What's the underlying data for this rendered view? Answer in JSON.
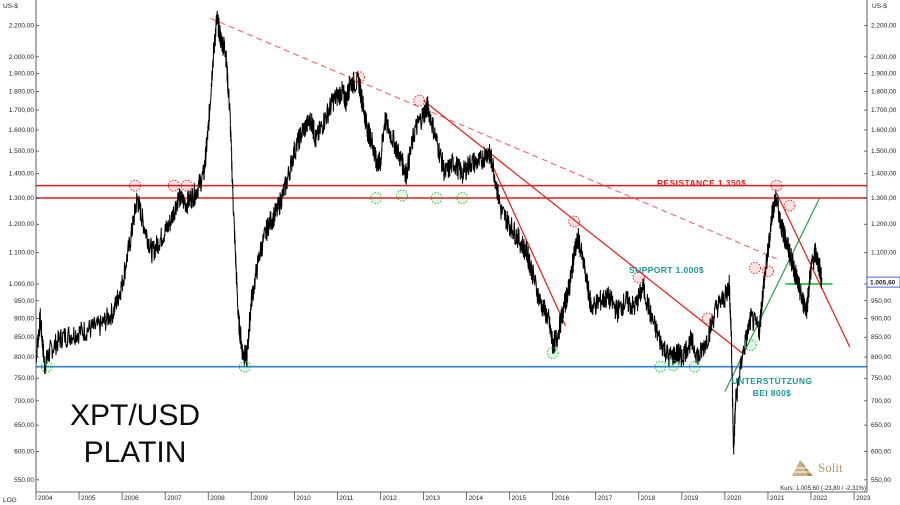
{
  "chart_data": {
    "type": "line",
    "instrument_label_line1": "XPT/USD",
    "instrument_label_line2": "PLATIN",
    "currency_label": "US-$",
    "scale_label": "LOG",
    "log_scale": true,
    "grid": false,
    "ylim": [
      530,
      2350
    ],
    "xlim": [
      2004.0,
      2023.3
    ],
    "y_ticks": [
      550,
      600,
      650,
      700,
      750,
      800,
      850,
      900,
      950,
      1000,
      1100,
      1200,
      1300,
      1400,
      1500,
      1600,
      1700,
      1800,
      1900,
      2000,
      2200
    ],
    "y_tick_labels": [
      "550,00",
      "600,00",
      "650,00",
      "700,00",
      "750,00",
      "800,00",
      "850,00",
      "900,00",
      "950,00",
      "1.000,00",
      "1.100,00",
      "1.200,00",
      "1.300,00",
      "1.400,00",
      "1.500,00",
      "1.600,00",
      "1.700,00",
      "1.800,00",
      "1.900,00",
      "2.000,00",
      "2.200,00"
    ],
    "x_ticks": [
      2004,
      2005,
      2006,
      2007,
      2008,
      2009,
      2010,
      2011,
      2012,
      2013,
      2014,
      2015,
      2016,
      2017,
      2018,
      2019,
      2020,
      2021,
      2022,
      2023
    ],
    "x_tick_labels": [
      "2004",
      "2005",
      "2006",
      "2007",
      "2008",
      "2009",
      "2010",
      "2011",
      "2012",
      "2013",
      "2014",
      "2015",
      "2016",
      "2017",
      "2018",
      "2019",
      "2020",
      "2021",
      "2022",
      "2023"
    ],
    "series": [
      {
        "color": "#000000",
        "points": [
          [
            2004.0,
            800
          ],
          [
            2004.1,
            900
          ],
          [
            2004.2,
            780
          ],
          [
            2004.35,
            820
          ],
          [
            2004.6,
            850
          ],
          [
            2004.9,
            860
          ],
          [
            2005.2,
            870
          ],
          [
            2005.5,
            880
          ],
          [
            2005.8,
            920
          ],
          [
            2006.0,
            1000
          ],
          [
            2006.2,
            1150
          ],
          [
            2006.35,
            1300
          ],
          [
            2006.5,
            1200
          ],
          [
            2006.7,
            1100
          ],
          [
            2006.9,
            1150
          ],
          [
            2007.1,
            1200
          ],
          [
            2007.3,
            1300
          ],
          [
            2007.5,
            1280
          ],
          [
            2007.7,
            1320
          ],
          [
            2007.9,
            1400
          ],
          [
            2008.0,
            1600
          ],
          [
            2008.1,
            1950
          ],
          [
            2008.2,
            2250
          ],
          [
            2008.3,
            2100
          ],
          [
            2008.4,
            2050
          ],
          [
            2008.5,
            1700
          ],
          [
            2008.6,
            1200
          ],
          [
            2008.7,
            900
          ],
          [
            2008.8,
            810
          ],
          [
            2008.9,
            800
          ],
          [
            2009.0,
            950
          ],
          [
            2009.2,
            1100
          ],
          [
            2009.4,
            1200
          ],
          [
            2009.6,
            1250
          ],
          [
            2009.8,
            1350
          ],
          [
            2010.0,
            1500
          ],
          [
            2010.2,
            1600
          ],
          [
            2010.4,
            1650
          ],
          [
            2010.5,
            1550
          ],
          [
            2010.7,
            1650
          ],
          [
            2010.9,
            1750
          ],
          [
            2011.1,
            1800
          ],
          [
            2011.2,
            1750
          ],
          [
            2011.3,
            1850
          ],
          [
            2011.5,
            1850
          ],
          [
            2011.6,
            1720
          ],
          [
            2011.7,
            1600
          ],
          [
            2011.8,
            1550
          ],
          [
            2011.9,
            1450
          ],
          [
            2012.0,
            1450
          ],
          [
            2012.1,
            1650
          ],
          [
            2012.3,
            1550
          ],
          [
            2012.5,
            1450
          ],
          [
            2012.6,
            1400
          ],
          [
            2012.8,
            1600
          ],
          [
            2013.0,
            1680
          ],
          [
            2013.1,
            1720
          ],
          [
            2013.3,
            1550
          ],
          [
            2013.5,
            1400
          ],
          [
            2013.7,
            1450
          ],
          [
            2013.9,
            1400
          ],
          [
            2014.1,
            1450
          ],
          [
            2014.3,
            1450
          ],
          [
            2014.5,
            1500
          ],
          [
            2014.6,
            1450
          ],
          [
            2014.8,
            1250
          ],
          [
            2015.0,
            1200
          ],
          [
            2015.2,
            1150
          ],
          [
            2015.4,
            1100
          ],
          [
            2015.5,
            1050
          ],
          [
            2015.7,
            950
          ],
          [
            2015.9,
            900
          ],
          [
            2016.0,
            830
          ],
          [
            2016.1,
            850
          ],
          [
            2016.3,
            950
          ],
          [
            2016.4,
            1000
          ],
          [
            2016.5,
            1100
          ],
          [
            2016.6,
            1150
          ],
          [
            2016.8,
            1000
          ],
          [
            2016.9,
            930
          ],
          [
            2017.1,
            950
          ],
          [
            2017.3,
            960
          ],
          [
            2017.5,
            920
          ],
          [
            2017.7,
            950
          ],
          [
            2017.9,
            930
          ],
          [
            2018.1,
            990
          ],
          [
            2018.3,
            900
          ],
          [
            2018.5,
            840
          ],
          [
            2018.7,
            800
          ],
          [
            2018.9,
            810
          ],
          [
            2019.0,
            800
          ],
          [
            2019.2,
            840
          ],
          [
            2019.4,
            800
          ],
          [
            2019.6,
            850
          ],
          [
            2019.8,
            930
          ],
          [
            2020.0,
            960
          ],
          [
            2020.1,
            1000
          ],
          [
            2020.15,
            850
          ],
          [
            2020.2,
            600
          ],
          [
            2020.25,
            700
          ],
          [
            2020.4,
            800
          ],
          [
            2020.6,
            900
          ],
          [
            2020.8,
            870
          ],
          [
            2020.9,
            1000
          ],
          [
            2021.0,
            1100
          ],
          [
            2021.1,
            1250
          ],
          [
            2021.2,
            1300
          ],
          [
            2021.3,
            1200
          ],
          [
            2021.4,
            1150
          ],
          [
            2021.5,
            1100
          ],
          [
            2021.6,
            1050
          ],
          [
            2021.7,
            1000
          ],
          [
            2021.8,
            950
          ],
          [
            2021.9,
            930
          ],
          [
            2022.0,
            1050
          ],
          [
            2022.1,
            1100
          ],
          [
            2022.2,
            1050
          ],
          [
            2022.25,
            1005.6
          ]
        ]
      }
    ],
    "reference_lines": [
      {
        "label": "RESISTANCE 1.350$",
        "value": 1350,
        "color": "#e21c1c"
      },
      {
        "label": "",
        "value": 1300,
        "color": "#e21c1c"
      },
      {
        "label": "SUPPORT 1.000$",
        "value": 1000,
        "color": "#18c03a",
        "x_range": [
          2021.4,
          2022.5
        ]
      },
      {
        "label": "",
        "value": 777,
        "color": "#2d7fe0"
      }
    ],
    "support_label_line1": "UNTERSTÜTZUNG",
    "support_label_line2": "BEI 800$",
    "support_label_color": "#1a9a9a",
    "trend_lines": [
      {
        "from": [
          2008.05,
          2250
        ],
        "to": [
          2021.2,
          1080
        ],
        "color": "#f07070",
        "dashed": true
      },
      {
        "from": [
          2013.0,
          1750
        ],
        "to": [
          2020.4,
          810
        ],
        "color": "#e21c1c",
        "dashed": false
      },
      {
        "from": [
          2014.4,
          1520
        ],
        "to": [
          2016.3,
          880
        ],
        "color": "#e21c1c",
        "dashed": false
      },
      {
        "from": [
          2021.2,
          1320
        ],
        "to": [
          2022.9,
          825
        ],
        "color": "#e21c1c",
        "dashed": false
      },
      {
        "from": [
          2020.0,
          720
        ],
        "to": [
          2022.2,
          1300
        ],
        "color": "#2a9d4a",
        "dashed": false
      }
    ],
    "highlight_circles": [
      {
        "at": [
          2006.3,
          1350
        ],
        "color": "#e21c1c"
      },
      {
        "at": [
          2007.2,
          1350
        ],
        "color": "#e21c1c"
      },
      {
        "at": [
          2007.5,
          1350
        ],
        "color": "#e21c1c"
      },
      {
        "at": [
          2011.5,
          1880
        ],
        "color": "#e21c1c"
      },
      {
        "at": [
          2012.9,
          1750
        ],
        "color": "#e21c1c"
      },
      {
        "at": [
          2016.5,
          1210
        ],
        "color": "#e21c1c"
      },
      {
        "at": [
          2018.0,
          1020
        ],
        "color": "#e21c1c"
      },
      {
        "at": [
          2019.6,
          900
        ],
        "color": "#e21c1c"
      },
      {
        "at": [
          2021.2,
          1350
        ],
        "color": "#e21c1c"
      },
      {
        "at": [
          2021.5,
          1270
        ],
        "color": "#e21c1c"
      },
      {
        "at": [
          2020.7,
          1050
        ],
        "color": "#e21c1c"
      },
      {
        "at": [
          2021.0,
          1040
        ],
        "color": "#e21c1c"
      },
      {
        "at": [
          2004.25,
          777
        ],
        "color": "#18c03a"
      },
      {
        "at": [
          2008.85,
          777
        ],
        "color": "#18c03a"
      },
      {
        "at": [
          2011.9,
          1300
        ],
        "color": "#18c03a"
      },
      {
        "at": [
          2012.5,
          1310
        ],
        "color": "#18c03a"
      },
      {
        "at": [
          2013.3,
          1300
        ],
        "color": "#18c03a"
      },
      {
        "at": [
          2013.9,
          1300
        ],
        "color": "#18c03a"
      },
      {
        "at": [
          2016.0,
          810
        ],
        "color": "#18c03a"
      },
      {
        "at": [
          2018.5,
          777
        ],
        "color": "#18c03a"
      },
      {
        "at": [
          2018.8,
          780
        ],
        "color": "#18c03a"
      },
      {
        "at": [
          2019.3,
          777
        ],
        "color": "#18c03a"
      },
      {
        "at": [
          2020.6,
          830
        ],
        "color": "#18c03a"
      }
    ],
    "last_price_badge": "1.005,60",
    "last_price_badge_value": 1005.6,
    "last_price_badge_color": "#1b3fd1",
    "footer_quote": "Kurs: 1.005,60 (-23,80 / -2,31%)",
    "brand_name": "Solit",
    "brand_color": "#b39b6a"
  }
}
